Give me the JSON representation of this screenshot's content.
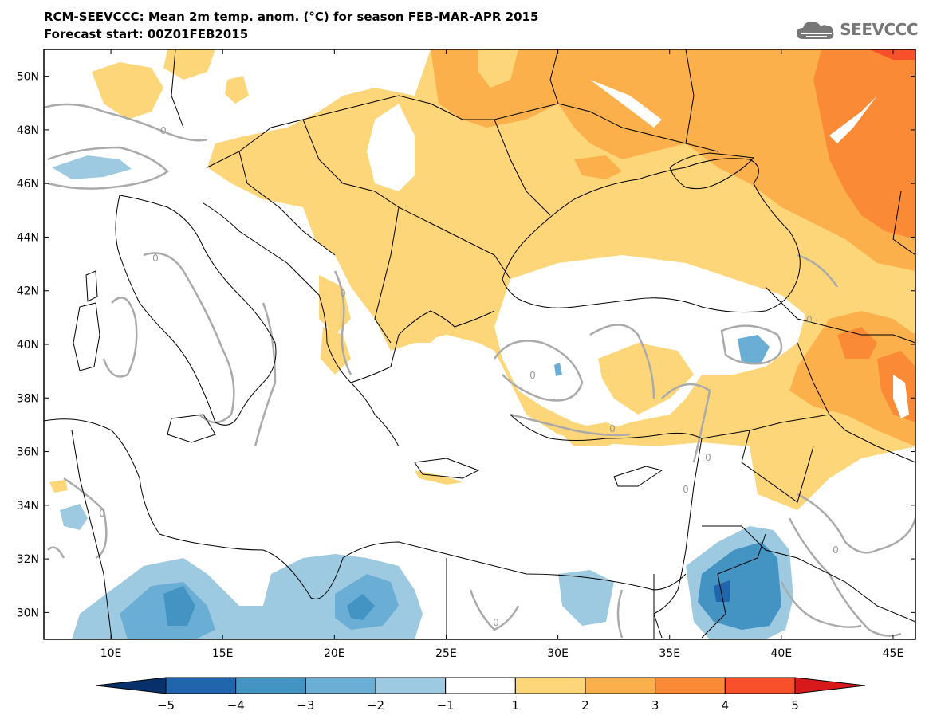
{
  "title_line1": "RCM-SEEVCCC: Mean 2m temp. anom. (°C) for season FEB-MAR-APR 2015",
  "title_line2": "Forecast start: 00Z01FEB2015",
  "logo_text": "SEEVCCC",
  "map": {
    "lon_range": [
      7,
      46
    ],
    "lat_range": [
      29,
      51
    ],
    "lat_ticks": [
      {
        "value": 30,
        "label": "30N"
      },
      {
        "value": 32,
        "label": "32N"
      },
      {
        "value": 34,
        "label": "34N"
      },
      {
        "value": 36,
        "label": "36N"
      },
      {
        "value": 38,
        "label": "38N"
      },
      {
        "value": 40,
        "label": "40N"
      },
      {
        "value": 42,
        "label": "42N"
      },
      {
        "value": 44,
        "label": "44N"
      },
      {
        "value": 46,
        "label": "46N"
      },
      {
        "value": 48,
        "label": "48N"
      },
      {
        "value": 50,
        "label": "50N"
      }
    ],
    "lon_ticks": [
      {
        "value": 10,
        "label": "10E"
      },
      {
        "value": 15,
        "label": "15E"
      },
      {
        "value": 20,
        "label": "20E"
      },
      {
        "value": 25,
        "label": "25E"
      },
      {
        "value": 30,
        "label": "30E"
      },
      {
        "value": 35,
        "label": "35E"
      },
      {
        "value": 40,
        "label": "40E"
      },
      {
        "value": 45,
        "label": "45E"
      }
    ],
    "contour_label": "0"
  },
  "colorbar": {
    "colors": [
      "#08306b",
      "#2166ac",
      "#4393c3",
      "#6aaed6",
      "#9ecae1",
      "#ffffff",
      "#fdd67a",
      "#fcb04c",
      "#fb8a36",
      "#f8502b",
      "#d7191c"
    ],
    "labels": [
      "−5",
      "−4",
      "−3",
      "−2",
      "−1",
      "1",
      "2",
      "3",
      "4",
      "5"
    ]
  }
}
